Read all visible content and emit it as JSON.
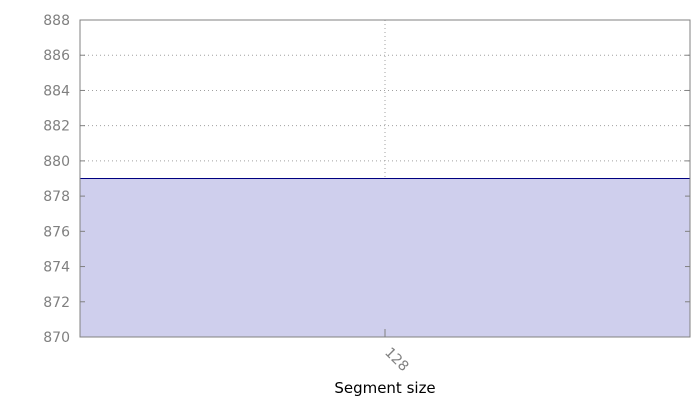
{
  "chart_data": {
    "type": "bar",
    "title": "",
    "xlabel": "Segment size",
    "ylabel": "",
    "categories": [
      "128"
    ],
    "values": [
      879
    ],
    "ylim": [
      870,
      888
    ],
    "yticks": [
      "870",
      "872",
      "874",
      "876",
      "878",
      "880",
      "882",
      "884",
      "886",
      "888"
    ],
    "grid": true,
    "legend": "none",
    "colors": {
      "bar_fill": "#cfcfed",
      "bar_stroke": "#000080",
      "grid": "#a0a0a0",
      "axis": "#808080",
      "tick_text": "#808080"
    }
  }
}
